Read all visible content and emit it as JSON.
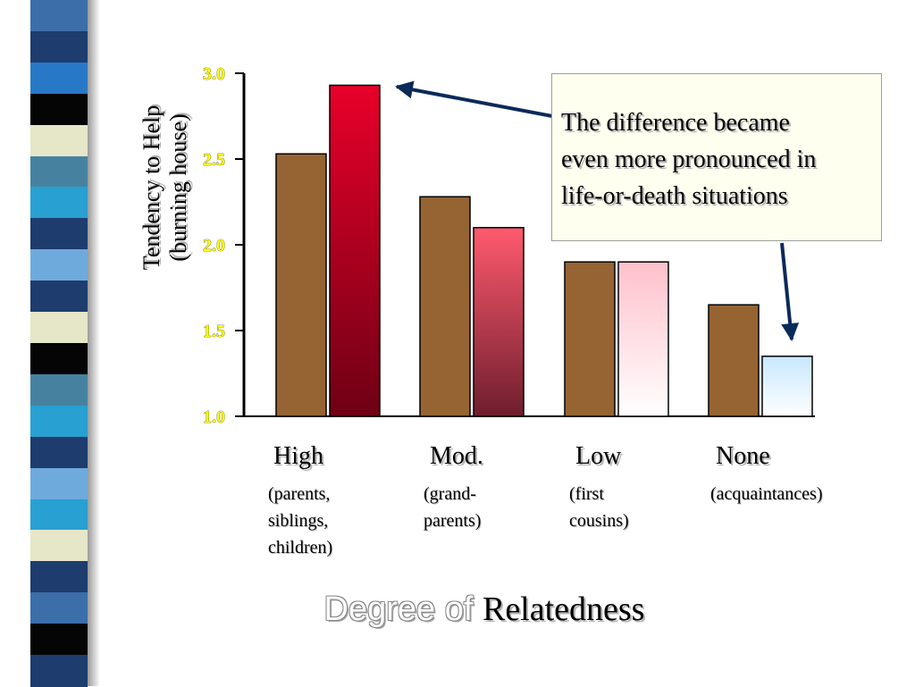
{
  "chart_data": {
    "type": "bar",
    "title": "",
    "xlabel": "Degree of Relatedness",
    "xlabel_parts": [
      "Degree of ",
      "Relatedness"
    ],
    "ylabel_lines": [
      "Tendency to Help",
      "(burning house)"
    ],
    "ylim": [
      1.0,
      3.0
    ],
    "yticks": [
      "1.0",
      "1.5",
      "2.0",
      "2.5",
      "3.0"
    ],
    "grid": false,
    "legend": "none",
    "categories": [
      {
        "label": "High",
        "sublabel": [
          "(parents,",
          "siblings,",
          "children)"
        ]
      },
      {
        "label": "Mod.",
        "sublabel": [
          "(grand-",
          "parents)"
        ]
      },
      {
        "label": "Low",
        "sublabel": [
          "(first",
          "cousins)"
        ]
      },
      {
        "label": "None",
        "sublabel": [
          "(acquaintances)"
        ]
      }
    ],
    "series": [
      {
        "values": [
          2.53,
          2.28,
          1.9,
          1.65
        ],
        "color": "#966432"
      },
      {
        "values": [
          2.93,
          2.1,
          1.9,
          1.35
        ],
        "colors": [
          "#e8002a",
          "#ff5a6e",
          "#ffc0cb",
          "#c8e8ff"
        ]
      }
    ],
    "annotation": {
      "text": [
        "The difference became",
        "even more pronounced in",
        "life-or-death situations"
      ]
    }
  },
  "stripe_colors": [
    "#3c6eaa",
    "#1e3c6e",
    "#2878c8",
    "#050505",
    "#e6e6c8",
    "#4682a0",
    "#28a0d2",
    "#1e3c6e",
    "#6eaadc",
    "#1e3c6e",
    "#e6e6c8",
    "#050505",
    "#4682a0",
    "#28a0d2",
    "#1e3c6e",
    "#6eaadc",
    "#28a0d2",
    "#e6e6c8",
    "#1e3c6e",
    "#3c6eaa",
    "#050505",
    "#1e3c6e"
  ]
}
